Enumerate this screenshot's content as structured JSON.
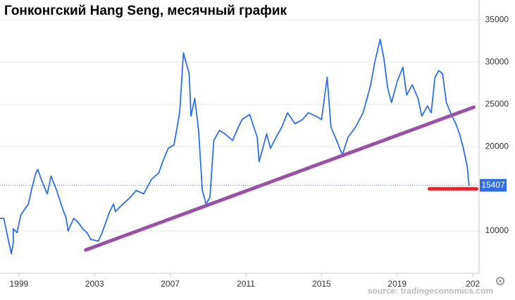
{
  "chart_data": {
    "type": "line",
    "title": "Гонконгский Hang Seng, месячный график",
    "source": "source: tradingeconomics.com",
    "x": [
      1998.0,
      1998.2,
      1998.4,
      1998.6,
      1998.7,
      1998.7,
      1998.9,
      1999.1,
      1999.5,
      1999.7,
      1999.9,
      2000.0,
      2000.2,
      2000.5,
      2000.7,
      2001.0,
      2001.3,
      2001.5,
      2001.6,
      2001.9,
      2002.1,
      2002.4,
      2002.6,
      2002.8,
      2003.2,
      2003.4,
      2003.8,
      2004.0,
      2004.1,
      2004.5,
      2004.9,
      2005.2,
      2005.6,
      2006.0,
      2006.4,
      2006.6,
      2006.9,
      2007.2,
      2007.5,
      2007.7,
      2008.0,
      2008.1,
      2008.3,
      2008.5,
      2008.7,
      2008.9,
      2009.1,
      2009.3,
      2009.6,
      2009.9,
      2010.3,
      2010.6,
      2010.8,
      2011.2,
      2011.6,
      2011.7,
      2012.1,
      2012.3,
      2012.6,
      2012.9,
      2013.2,
      2013.6,
      2014.0,
      2014.3,
      2014.7,
      2015.0,
      2015.3,
      2015.5,
      2015.8,
      2016.1,
      2016.4,
      2016.8,
      2017.2,
      2017.6,
      2017.8,
      2018.1,
      2018.3,
      2018.5,
      2018.7,
      2019.0,
      2019.3,
      2019.5,
      2019.8,
      2020.1,
      2020.3,
      2020.6,
      2020.8,
      2021.0,
      2021.2,
      2021.4,
      2021.6,
      2021.9,
      2022.1,
      2022.3,
      2022.5,
      2022.7,
      2022.8
    ],
    "series": [
      {
        "color": "#2f6fe4",
        "values": [
          11500,
          11500,
          9400,
          7300,
          8600,
          10250,
          9800,
          11900,
          13200,
          15200,
          16900,
          17300,
          16000,
          14400,
          16500,
          14800,
          12700,
          11500,
          10000,
          11500,
          11100,
          10200,
          9800,
          9000,
          8800,
          9800,
          12300,
          13200,
          12300,
          13200,
          14000,
          14800,
          14400,
          16100,
          16900,
          18200,
          19800,
          20200,
          24000,
          31100,
          28600,
          23600,
          25700,
          21900,
          14800,
          13200,
          14000,
          20700,
          21900,
          21500,
          20700,
          22300,
          23200,
          23800,
          21100,
          18200,
          21500,
          19800,
          21100,
          22300,
          24000,
          22700,
          23200,
          24000,
          23600,
          23200,
          28200,
          22300,
          20700,
          19000,
          21100,
          22300,
          24000,
          27300,
          29800,
          32700,
          30400,
          26900,
          25200,
          27700,
          29400,
          26100,
          27300,
          25700,
          23600,
          24800,
          24000,
          28200,
          29000,
          28600,
          25200,
          23600,
          22700,
          21500,
          19800,
          17700,
          15407
        ]
      }
    ],
    "lines": [
      {
        "color": "#9b4fa6",
        "x": [
          2002.53,
          2023.05
        ],
        "values": [
          7750,
          24660
        ]
      },
      {
        "color": "#e2202a",
        "x": [
          2020.7,
          2023.2
        ],
        "values": [
          15000,
          15000
        ]
      }
    ],
    "last_value": 15407,
    "xlim": [
      1998.0,
      2023.33
    ],
    "xticks": [
      1999,
      2003,
      2007,
      2011,
      2015,
      2019,
      {
        "value": 2023,
        "label": "202"
      }
    ],
    "ylim": [
      5000,
      37350
    ],
    "yticks": [
      10000,
      20000,
      25000,
      30000,
      35000
    ],
    "grid": true
  }
}
